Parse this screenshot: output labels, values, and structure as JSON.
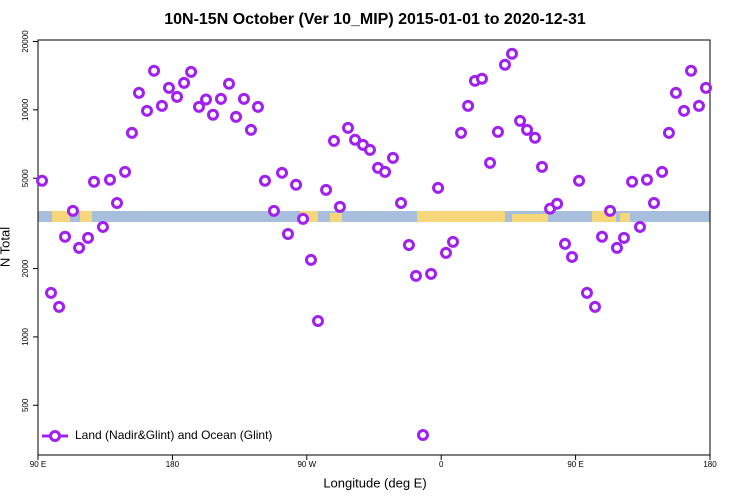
{
  "chart_data": {
    "type": "scatter",
    "title": "10N-15N October (Ver 10_MIP)   2015-01-01 to 2020-12-31",
    "x_label": "Longitude (deg E)",
    "y_label": "N Total",
    "log_y": true,
    "xlim": [
      90,
      540
    ],
    "ylim": [
      302,
      20300
    ],
    "xticks": [
      {
        "value": 90,
        "label": "90 E"
      },
      180,
      {
        "value": 270,
        "label": "90 W"
      },
      {
        "value": 360,
        "label": "0"
      },
      {
        "value": 450,
        "label": "90 E"
      },
      {
        "value": 540,
        "label": "180"
      }
    ],
    "yticks": [
      500,
      1000,
      2000,
      5000,
      10000,
      20000
    ],
    "legend": "bottom-left",
    "series": [
      {
        "name": "Land (Nadir&Glint) and Ocean (Glint)",
        "color": "#a020f0",
        "x": [
          92.7,
          98.7,
          104.1,
          108.1,
          113.4,
          117.5,
          123.5,
          127.5,
          133.5,
          138.2,
          142.9,
          148.3,
          152.9,
          157.6,
          163.0,
          167.7,
          173.0,
          177.7,
          183.1,
          187.8,
          192.5,
          197.8,
          202.5,
          207.2,
          212.5,
          217.9,
          222.6,
          227.9,
          232.6,
          237.3,
          242.0,
          248.0,
          253.4,
          257.4,
          262.8,
          267.5,
          272.8,
          277.5,
          282.9,
          288.2,
          292.2,
          297.6,
          302.3,
          307.6,
          312.3,
          317.7,
          322.4,
          327.7,
          333.1,
          338.4,
          343.1,
          347.8,
          353.2,
          357.9,
          363.2,
          367.9,
          373.3,
          378.0,
          382.6,
          387.3,
          392.7,
          398.0,
          402.7,
          407.4,
          412.8,
          417.5,
          422.8,
          427.5,
          432.9,
          437.6,
          442.9,
          447.6,
          452.3,
          457.6,
          463.0,
          467.7,
          473.1,
          477.7,
          482.4,
          487.8,
          493.1,
          497.8,
          502.5,
          507.9,
          512.5,
          517.2,
          522.6,
          527.3,
          532.6,
          537.3
        ],
        "values": [
          4870,
          1563,
          1356,
          2760,
          3590,
          2466,
          2730,
          4820,
          3050,
          4920,
          3890,
          5330,
          7920,
          11880,
          9900,
          14860,
          10410,
          12500,
          11400,
          13150,
          14700,
          10300,
          11100,
          9510,
          11180,
          13020,
          9315,
          11180,
          8165,
          10300,
          4870,
          3590,
          5280,
          2840,
          4680,
          3310,
          2183,
          1175,
          4440,
          7300,
          3740,
          8330,
          7380,
          7010,
          6660,
          5550,
          5330,
          6145,
          3890,
          2540,
          1857,
          370,
          1894,
          4530,
          2344,
          2620,
          7920,
          10410,
          13420,
          13700,
          5840,
          8000,
          15790,
          17650,
          8945,
          8165,
          7530,
          5610,
          3670,
          3860,
          2570,
          2250,
          4870,
          1563,
          1356,
          2760,
          3590,
          2466,
          2730,
          4820,
          3050,
          4920,
          3890,
          5330,
          7920,
          11880,
          9900,
          14860,
          10410,
          12500
        ]
      }
    ]
  }
}
